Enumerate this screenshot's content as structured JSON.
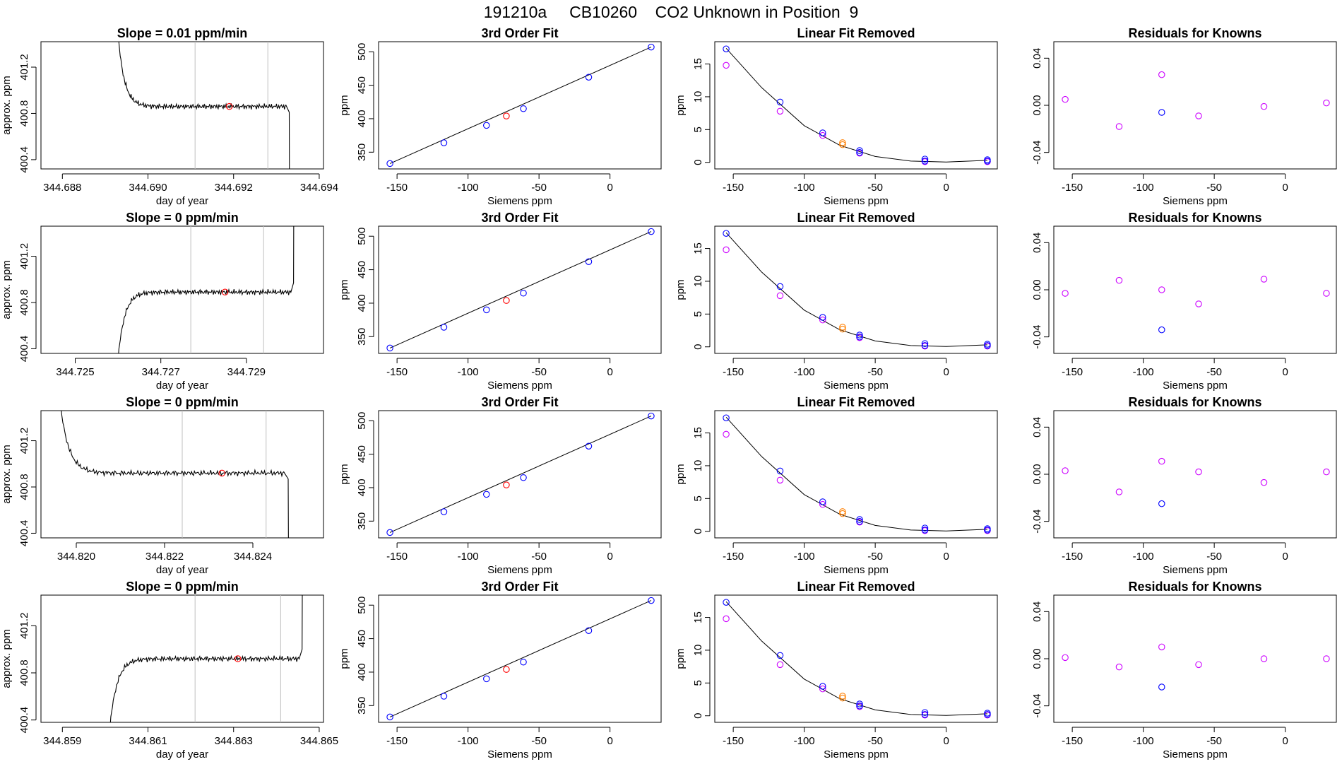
{
  "figure": {
    "title": "191210a     CB10260    CO2 Unknown in Position  9"
  },
  "colors": {
    "line": "#000000",
    "grid": "#bfbfbf",
    "unknown": "#ff0000",
    "known": "#0000ff",
    "assigned": "#ff7f00",
    "residual": "#cc00ff"
  },
  "chart_data": [
    {
      "row": 1,
      "col": 1,
      "type": "line",
      "title": "Slope =  0.01  ppm/min",
      "xlabel": "day of year",
      "ylabel": "approx. ppm",
      "xlim": [
        344.6875,
        344.6941
      ],
      "ylim": [
        400.32,
        401.42
      ],
      "xticks": [
        344.688,
        344.69,
        344.692,
        344.694
      ],
      "xtick_labels": [
        "344.688",
        "344.690",
        "344.692",
        "344.694"
      ],
      "yticks": [
        400.4,
        400.8,
        401.2
      ],
      "ytick_labels": [
        "400.4",
        "400.8",
        "401.2"
      ],
      "vlines": [
        344.6911,
        344.6928
      ],
      "trace_profile": "down",
      "x_start": 344.6892,
      "x_end": 344.6933,
      "plateau": 400.86,
      "point": [
        344.6919,
        400.86
      ]
    },
    {
      "row": 2,
      "col": 1,
      "type": "line",
      "title": "Slope =  0  ppm/min",
      "xlabel": "day of year",
      "ylabel": "approx. ppm",
      "xlim": [
        344.7242,
        344.7308
      ],
      "ylim": [
        400.36,
        401.46
      ],
      "xticks": [
        344.725,
        344.727,
        344.729
      ],
      "xtick_labels": [
        "344.725",
        "344.727",
        "344.729"
      ],
      "yticks": [
        400.4,
        400.8,
        401.2
      ],
      "ytick_labels": [
        "400.4",
        "400.8",
        "401.2"
      ],
      "vlines": [
        344.7277,
        344.7294
      ],
      "trace_profile": "up",
      "x_start": 344.7259,
      "x_end": 344.7301,
      "plateau": 400.89,
      "point": [
        344.7285,
        400.89
      ]
    },
    {
      "row": 3,
      "col": 1,
      "type": "line",
      "title": "Slope =  0  ppm/min",
      "xlabel": "day of year",
      "ylabel": "approx. ppm",
      "xlim": [
        344.8192,
        344.8256
      ],
      "ylim": [
        400.36,
        401.46
      ],
      "xticks": [
        344.82,
        344.822,
        344.824
      ],
      "xtick_labels": [
        "344.820",
        "344.822",
        "344.824"
      ],
      "yticks": [
        400.4,
        400.8,
        401.2
      ],
      "ytick_labels": [
        "400.4",
        "400.8",
        "401.2"
      ],
      "vlines": [
        344.8224,
        344.8243
      ],
      "trace_profile": "down",
      "x_start": 344.8195,
      "x_end": 344.8248,
      "plateau": 400.92,
      "point": [
        344.8233,
        400.92
      ]
    },
    {
      "row": 4,
      "col": 1,
      "type": "line",
      "title": "Slope =  0  ppm/min",
      "xlabel": "day of year",
      "ylabel": "approx. ppm",
      "xlim": [
        344.8585,
        344.8651
      ],
      "ylim": [
        400.38,
        401.46
      ],
      "xticks": [
        344.859,
        344.861,
        344.863,
        344.865
      ],
      "xtick_labels": [
        "344.859",
        "344.861",
        "344.863",
        "344.865"
      ],
      "yticks": [
        400.4,
        400.8,
        401.2
      ],
      "ytick_labels": [
        "400.4",
        "400.8",
        "401.2"
      ],
      "vlines": [
        344.8621,
        344.8641
      ],
      "trace_profile": "up",
      "x_start": 344.86,
      "x_end": 344.8646,
      "plateau": 400.92,
      "point": [
        344.8631,
        400.92
      ]
    },
    {
      "row": 1,
      "col": 2,
      "type": "scatter",
      "title": "3rd Order Fit",
      "xlabel": "Siemens ppm",
      "ylabel": "ppm",
      "xlim": [
        -163,
        36
      ],
      "ylim": [
        325,
        515
      ],
      "xticks": [
        -150,
        -100,
        -50,
        0
      ],
      "xtick_labels": [
        "-150",
        "-100",
        "-50",
        "0"
      ],
      "yticks": [
        350,
        400,
        450,
        500
      ],
      "ytick_labels": [
        "350",
        "400",
        "450",
        "500"
      ],
      "knowns": [
        [
          -155,
          333
        ],
        [
          -117,
          364
        ],
        [
          -87,
          390
        ],
        [
          -61,
          415
        ],
        [
          -15,
          462
        ],
        [
          29,
          507
        ]
      ],
      "unknown": [
        -73,
        404
      ],
      "fit_line": [
        [
          -155,
          333
        ],
        [
          29,
          507
        ]
      ]
    },
    {
      "row": 2,
      "col": 2,
      "type": "scatter",
      "title": "3rd Order Fit",
      "xlabel": "Siemens ppm",
      "ylabel": "ppm",
      "xlim": [
        -163,
        36
      ],
      "ylim": [
        325,
        515
      ],
      "xticks": [
        -150,
        -100,
        -50,
        0
      ],
      "xtick_labels": [
        "-150",
        "-100",
        "-50",
        "0"
      ],
      "yticks": [
        350,
        400,
        450,
        500
      ],
      "ytick_labels": [
        "350",
        "400",
        "450",
        "500"
      ],
      "knowns": [
        [
          -155,
          333
        ],
        [
          -117,
          364
        ],
        [
          -87,
          390
        ],
        [
          -61,
          415
        ],
        [
          -15,
          462
        ],
        [
          29,
          507
        ]
      ],
      "unknown": [
        -73,
        404
      ],
      "fit_line": [
        [
          -155,
          333
        ],
        [
          29,
          507
        ]
      ]
    },
    {
      "row": 3,
      "col": 2,
      "type": "scatter",
      "title": "3rd Order Fit",
      "xlabel": "Siemens ppm",
      "ylabel": "ppm",
      "xlim": [
        -163,
        36
      ],
      "ylim": [
        325,
        515
      ],
      "xticks": [
        -150,
        -100,
        -50,
        0
      ],
      "xtick_labels": [
        "-150",
        "-100",
        "-50",
        "0"
      ],
      "yticks": [
        350,
        400,
        450,
        500
      ],
      "ytick_labels": [
        "350",
        "400",
        "450",
        "500"
      ],
      "knowns": [
        [
          -155,
          333
        ],
        [
          -117,
          364
        ],
        [
          -87,
          390
        ],
        [
          -61,
          415
        ],
        [
          -15,
          462
        ],
        [
          29,
          507
        ]
      ],
      "unknown": [
        -73,
        404
      ],
      "fit_line": [
        [
          -155,
          333
        ],
        [
          29,
          507
        ]
      ]
    },
    {
      "row": 4,
      "col": 2,
      "type": "scatter",
      "title": "3rd Order Fit",
      "xlabel": "Siemens ppm",
      "ylabel": "ppm",
      "xlim": [
        -163,
        36
      ],
      "ylim": [
        325,
        515
      ],
      "xticks": [
        -150,
        -100,
        -50,
        0
      ],
      "xtick_labels": [
        "-150",
        "-100",
        "-50",
        "0"
      ],
      "yticks": [
        350,
        400,
        450,
        500
      ],
      "ytick_labels": [
        "350",
        "400",
        "450",
        "500"
      ],
      "knowns": [
        [
          -155,
          333
        ],
        [
          -117,
          364
        ],
        [
          -87,
          390
        ],
        [
          -61,
          415
        ],
        [
          -15,
          462
        ],
        [
          29,
          507
        ]
      ],
      "unknown": [
        -73,
        404
      ],
      "fit_line": [
        [
          -155,
          333
        ],
        [
          29,
          507
        ]
      ]
    },
    {
      "row": 1,
      "col": 3,
      "type": "scatter",
      "title": "Linear Fit Removed",
      "xlabel": "Siemens ppm",
      "ylabel": "ppm",
      "xlim": [
        -163,
        36
      ],
      "ylim": [
        -1,
        18.4
      ],
      "xticks": [
        -150,
        -100,
        -50,
        0
      ],
      "xtick_labels": [
        "-150",
        "-100",
        "-50",
        "0"
      ],
      "yticks": [
        0,
        5,
        10,
        15
      ],
      "ytick_labels": [
        "0",
        "5",
        "10",
        "15"
      ],
      "knowns": [
        [
          -155,
          17.3
        ],
        [
          -117,
          9.2
        ],
        [
          -87,
          4.5
        ],
        [
          -61,
          1.8
        ],
        [
          -61,
          1.5
        ],
        [
          -15,
          0.5
        ],
        [
          -15,
          0.2
        ],
        [
          29,
          0.4
        ],
        [
          29,
          0.2
        ]
      ],
      "residual_pts": [
        [
          -155,
          14.8
        ],
        [
          -117,
          7.8
        ],
        [
          -87,
          4.1
        ],
        [
          -61,
          1.4
        ],
        [
          -15,
          0.1
        ],
        [
          29,
          0.1
        ]
      ],
      "assigned": [
        [
          -73,
          3.0
        ],
        [
          -73,
          2.7
        ]
      ],
      "fit_curve": [
        [
          -155,
          17.4
        ],
        [
          -130,
          11.4
        ],
        [
          -100,
          5.6
        ],
        [
          -75,
          2.6
        ],
        [
          -50,
          0.9
        ],
        [
          -25,
          0.2
        ],
        [
          0,
          0.05
        ],
        [
          29,
          0.3
        ]
      ]
    },
    {
      "row": 2,
      "col": 3,
      "type": "scatter",
      "title": "Linear Fit Removed",
      "xlabel": "Siemens ppm",
      "ylabel": "ppm",
      "xlim": [
        -163,
        36
      ],
      "ylim": [
        -1,
        18.4
      ],
      "xticks": [
        -150,
        -100,
        -50,
        0
      ],
      "xtick_labels": [
        "-150",
        "-100",
        "-50",
        "0"
      ],
      "yticks": [
        0,
        5,
        10,
        15
      ],
      "ytick_labels": [
        "0",
        "5",
        "10",
        "15"
      ],
      "knowns": [
        [
          -155,
          17.3
        ],
        [
          -117,
          9.2
        ],
        [
          -87,
          4.5
        ],
        [
          -61,
          1.8
        ],
        [
          -61,
          1.5
        ],
        [
          -15,
          0.5
        ],
        [
          -15,
          0.2
        ],
        [
          29,
          0.4
        ],
        [
          29,
          0.2
        ]
      ],
      "residual_pts": [
        [
          -155,
          14.8
        ],
        [
          -117,
          7.8
        ],
        [
          -87,
          4.1
        ],
        [
          -61,
          1.4
        ],
        [
          -15,
          0.1
        ],
        [
          29,
          0.1
        ]
      ],
      "assigned": [
        [
          -73,
          3.0
        ],
        [
          -73,
          2.7
        ]
      ],
      "fit_curve": [
        [
          -155,
          17.4
        ],
        [
          -130,
          11.4
        ],
        [
          -100,
          5.6
        ],
        [
          -75,
          2.6
        ],
        [
          -50,
          0.9
        ],
        [
          -25,
          0.2
        ],
        [
          0,
          0.05
        ],
        [
          29,
          0.3
        ]
      ]
    },
    {
      "row": 3,
      "col": 3,
      "type": "scatter",
      "title": "Linear Fit Removed",
      "xlabel": "Siemens ppm",
      "ylabel": "ppm",
      "xlim": [
        -163,
        36
      ],
      "ylim": [
        -1,
        18.4
      ],
      "xticks": [
        -150,
        -100,
        -50,
        0
      ],
      "xtick_labels": [
        "-150",
        "-100",
        "-50",
        "0"
      ],
      "yticks": [
        0,
        5,
        10,
        15
      ],
      "ytick_labels": [
        "0",
        "5",
        "10",
        "15"
      ],
      "knowns": [
        [
          -155,
          17.3
        ],
        [
          -117,
          9.2
        ],
        [
          -87,
          4.5
        ],
        [
          -61,
          1.8
        ],
        [
          -61,
          1.5
        ],
        [
          -15,
          0.5
        ],
        [
          -15,
          0.2
        ],
        [
          29,
          0.4
        ],
        [
          29,
          0.2
        ]
      ],
      "residual_pts": [
        [
          -155,
          14.8
        ],
        [
          -117,
          7.8
        ],
        [
          -87,
          4.1
        ],
        [
          -61,
          1.4
        ],
        [
          -15,
          0.1
        ],
        [
          29,
          0.1
        ]
      ],
      "assigned": [
        [
          -73,
          3.0
        ],
        [
          -73,
          2.7
        ]
      ],
      "fit_curve": [
        [
          -155,
          17.4
        ],
        [
          -130,
          11.4
        ],
        [
          -100,
          5.6
        ],
        [
          -75,
          2.6
        ],
        [
          -50,
          0.9
        ],
        [
          -25,
          0.2
        ],
        [
          0,
          0.05
        ],
        [
          29,
          0.3
        ]
      ]
    },
    {
      "row": 4,
      "col": 3,
      "type": "scatter",
      "title": "Linear Fit Removed",
      "xlabel": "Siemens ppm",
      "ylabel": "ppm",
      "xlim": [
        -163,
        36
      ],
      "ylim": [
        -1,
        18.4
      ],
      "xticks": [
        -150,
        -100,
        -50,
        0
      ],
      "xtick_labels": [
        "-150",
        "-100",
        "-50",
        "0"
      ],
      "yticks": [
        0,
        5,
        10,
        15
      ],
      "ytick_labels": [
        "0",
        "5",
        "10",
        "15"
      ],
      "knowns": [
        [
          -155,
          17.3
        ],
        [
          -117,
          9.2
        ],
        [
          -87,
          4.5
        ],
        [
          -61,
          1.8
        ],
        [
          -61,
          1.5
        ],
        [
          -15,
          0.5
        ],
        [
          -15,
          0.2
        ],
        [
          29,
          0.4
        ],
        [
          29,
          0.2
        ]
      ],
      "residual_pts": [
        [
          -155,
          14.8
        ],
        [
          -117,
          7.8
        ],
        [
          -87,
          4.1
        ],
        [
          -61,
          1.4
        ],
        [
          -15,
          0.1
        ],
        [
          29,
          0.1
        ]
      ],
      "assigned": [
        [
          -73,
          3.0
        ],
        [
          -73,
          2.7
        ]
      ],
      "fit_curve": [
        [
          -155,
          17.4
        ],
        [
          -130,
          11.4
        ],
        [
          -100,
          5.6
        ],
        [
          -75,
          2.6
        ],
        [
          -50,
          0.9
        ],
        [
          -25,
          0.2
        ],
        [
          0,
          0.05
        ],
        [
          29,
          0.3
        ]
      ]
    },
    {
      "row": 1,
      "col": 4,
      "type": "scatter",
      "title": "Residuals for Knowns",
      "xlabel": "Siemens ppm",
      "ylabel": "",
      "xlim": [
        -163,
        36
      ],
      "ylim": [
        -0.054,
        0.054
      ],
      "xticks": [
        -150,
        -100,
        -50,
        0
      ],
      "xtick_labels": [
        "-150",
        "-100",
        "-50",
        "0"
      ],
      "yticks": [
        -0.04,
        0.0,
        0.04
      ],
      "ytick_labels": [
        "-0.04",
        "0.00",
        "0.04"
      ],
      "residuals": [
        [
          -155,
          0.005
        ],
        [
          -117,
          -0.018
        ],
        [
          -87,
          0.026
        ],
        [
          -61,
          -0.009
        ],
        [
          -15,
          -0.001
        ],
        [
          29,
          0.002
        ]
      ],
      "known_resid": [
        [
          -87,
          -0.006
        ]
      ]
    },
    {
      "row": 2,
      "col": 4,
      "type": "scatter",
      "title": "Residuals for Knowns",
      "xlabel": "Siemens ppm",
      "ylabel": "",
      "xlim": [
        -163,
        36
      ],
      "ylim": [
        -0.054,
        0.054
      ],
      "xticks": [
        -150,
        -100,
        -50,
        0
      ],
      "xtick_labels": [
        "-150",
        "-100",
        "-50",
        "0"
      ],
      "yticks": [
        -0.04,
        0.0,
        0.04
      ],
      "ytick_labels": [
        "-0.04",
        "0.00",
        "0.04"
      ],
      "residuals": [
        [
          -155,
          -0.003
        ],
        [
          -117,
          0.008
        ],
        [
          -87,
          0.0
        ],
        [
          -61,
          -0.012
        ],
        [
          -15,
          0.009
        ],
        [
          29,
          -0.003
        ]
      ],
      "known_resid": [
        [
          -87,
          -0.034
        ]
      ]
    },
    {
      "row": 3,
      "col": 4,
      "type": "scatter",
      "title": "Residuals for Knowns",
      "xlabel": "Siemens ppm",
      "ylabel": "",
      "xlim": [
        -163,
        36
      ],
      "ylim": [
        -0.054,
        0.054
      ],
      "xticks": [
        -150,
        -100,
        -50,
        0
      ],
      "xtick_labels": [
        "-150",
        "-100",
        "-50",
        "0"
      ],
      "yticks": [
        -0.04,
        0.0,
        0.04
      ],
      "ytick_labels": [
        "-0.04",
        "0.00",
        "0.04"
      ],
      "residuals": [
        [
          -155,
          0.003
        ],
        [
          -117,
          -0.015
        ],
        [
          -87,
          0.011
        ],
        [
          -61,
          0.002
        ],
        [
          -15,
          -0.007
        ],
        [
          29,
          0.002
        ]
      ],
      "known_resid": [
        [
          -87,
          -0.025
        ]
      ]
    },
    {
      "row": 4,
      "col": 4,
      "type": "scatter",
      "title": "Residuals for Knowns",
      "xlabel": "Siemens ppm",
      "ylabel": "",
      "xlim": [
        -163,
        36
      ],
      "ylim": [
        -0.054,
        0.054
      ],
      "xticks": [
        -150,
        -100,
        -50,
        0
      ],
      "xtick_labels": [
        "-150",
        "-100",
        "-50",
        "0"
      ],
      "yticks": [
        -0.04,
        0.0,
        0.04
      ],
      "ytick_labels": [
        "-0.04",
        "0.00",
        "0.04"
      ],
      "residuals": [
        [
          -155,
          0.001
        ],
        [
          -117,
          -0.007
        ],
        [
          -87,
          0.01
        ],
        [
          -61,
          -0.005
        ],
        [
          -15,
          0.0
        ],
        [
          29,
          0.0
        ]
      ],
      "known_resid": [
        [
          -87,
          -0.024
        ]
      ]
    }
  ]
}
